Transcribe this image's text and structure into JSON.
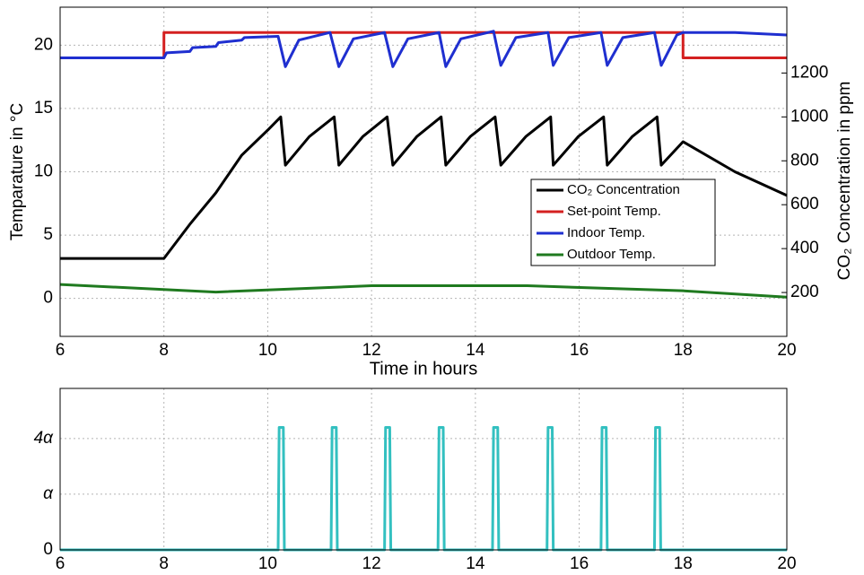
{
  "chart_data": [
    {
      "type": "line",
      "xlabel": "Time in hours",
      "ylabel": "Temparature in °C",
      "y2label": "CO₂ Concentration in ppm",
      "xlim": [
        6,
        20
      ],
      "xticks": [
        6,
        8,
        10,
        12,
        14,
        16,
        18,
        20
      ],
      "ylim": [
        -3,
        23
      ],
      "yticks": [
        0,
        5,
        10,
        15,
        20
      ],
      "y2lim": [
        0,
        1500
      ],
      "y2ticks": [
        200,
        400,
        600,
        800,
        1000,
        1200
      ],
      "grid": true,
      "legend": "right",
      "series": [
        {
          "name": "CO₂ Concentration",
          "color": "#000000",
          "axis": "y2",
          "x": [
            6,
            8,
            8.5,
            9,
            9.5,
            10,
            10.25,
            10.34,
            10.8,
            11.28,
            11.37,
            11.83,
            12.3,
            12.41,
            12.87,
            13.34,
            13.43,
            13.9,
            14.38,
            14.49,
            14.97,
            15.45,
            15.5,
            15.98,
            16.47,
            16.54,
            17.02,
            17.5,
            17.58,
            18,
            19,
            20
          ],
          "values": [
            355,
            355,
            511,
            654,
            826,
            940,
            1000,
            780,
            910,
            1000,
            780,
            910,
            1000,
            780,
            910,
            1000,
            780,
            910,
            1000,
            780,
            910,
            1000,
            780,
            910,
            1000,
            780,
            910,
            1000,
            780,
            887,
            750,
            642
          ]
        },
        {
          "name": "Set-point Temp.",
          "color": "#d42020",
          "x": [
            6,
            8,
            8,
            18,
            18,
            20
          ],
          "values": [
            19,
            19,
            21,
            21,
            19,
            19
          ]
        },
        {
          "name": "Indoor Temp.",
          "color": "#1f2fd0",
          "x": [
            6,
            8,
            8.05,
            8.5,
            8.55,
            9,
            9.05,
            9.5,
            9.55,
            10.2,
            10.34,
            10.6,
            11.2,
            11.37,
            11.65,
            12.25,
            12.41,
            12.7,
            13.3,
            13.43,
            13.72,
            14.35,
            14.49,
            14.78,
            15.4,
            15.5,
            15.8,
            16.42,
            16.54,
            16.84,
            17.45,
            17.58,
            17.88,
            18,
            19,
            20
          ],
          "values": [
            19,
            19,
            19.4,
            19.5,
            19.8,
            19.9,
            20.2,
            20.4,
            20.6,
            20.7,
            18.3,
            20.4,
            21,
            18.3,
            20.5,
            21,
            18.3,
            20.5,
            21,
            18.3,
            20.5,
            21.1,
            18.4,
            20.6,
            21,
            18.4,
            20.6,
            21,
            18.4,
            20.6,
            21,
            18.4,
            20.8,
            21,
            21,
            20.8
          ]
        },
        {
          "name": "Outdoor Temp.",
          "color": "#1f7a1f",
          "x": [
            6,
            9,
            12,
            15,
            18,
            20
          ],
          "values": [
            1.1,
            0.5,
            1.0,
            1.0,
            0.6,
            0.1
          ]
        }
      ]
    },
    {
      "type": "line",
      "xlim": [
        6,
        20
      ],
      "xticks": [
        6,
        8,
        10,
        12,
        14,
        16,
        18,
        20
      ],
      "ylim": [
        0,
        2.9
      ],
      "yticks": [
        0,
        {
          "value": 1,
          "label": "α"
        },
        {
          "value": 2,
          "label": "4α"
        }
      ],
      "grid": true,
      "series": [
        {
          "color": "#33c0c0",
          "x": [
            6,
            10.2,
            10.22,
            10.3,
            10.32,
            11.22,
            11.24,
            11.32,
            11.34,
            12.25,
            12.27,
            12.35,
            12.37,
            13.28,
            13.3,
            13.38,
            13.4,
            14.33,
            14.35,
            14.43,
            14.45,
            15.38,
            15.4,
            15.48,
            15.5,
            16.42,
            16.44,
            16.52,
            16.54,
            17.45,
            17.47,
            17.55,
            17.57,
            20
          ],
          "values": [
            0,
            0,
            2.2,
            2.2,
            0,
            0,
            2.2,
            2.2,
            0,
            0,
            2.2,
            2.2,
            0,
            0,
            2.2,
            2.2,
            0,
            0,
            2.2,
            2.2,
            0,
            0,
            2.2,
            2.2,
            0,
            0,
            2.2,
            2.2,
            0,
            0,
            2.2,
            2.2,
            0,
            0
          ]
        }
      ]
    }
  ]
}
